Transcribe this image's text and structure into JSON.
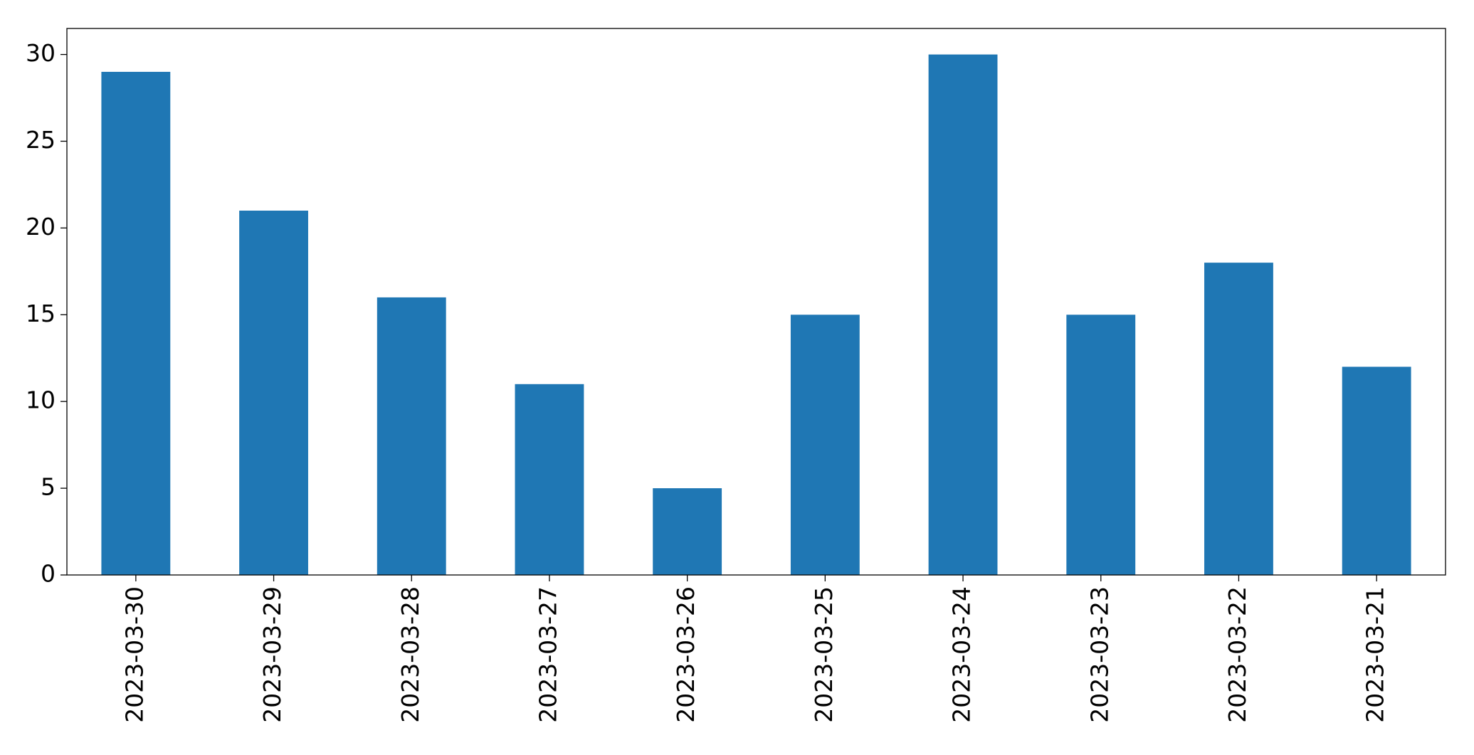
{
  "chart_data": {
    "type": "bar",
    "categories": [
      "2023-03-30",
      "2023-03-29",
      "2023-03-28",
      "2023-03-27",
      "2023-03-26",
      "2023-03-25",
      "2023-03-24",
      "2023-03-23",
      "2023-03-22",
      "2023-03-21"
    ],
    "values": [
      29,
      21,
      16,
      11,
      5,
      15,
      30,
      15,
      18,
      12
    ],
    "color": "#1f77b4",
    "ylim": [
      0,
      31.5
    ],
    "yticks": [
      0,
      5,
      10,
      15,
      20,
      25,
      30
    ],
    "grid": false
  }
}
